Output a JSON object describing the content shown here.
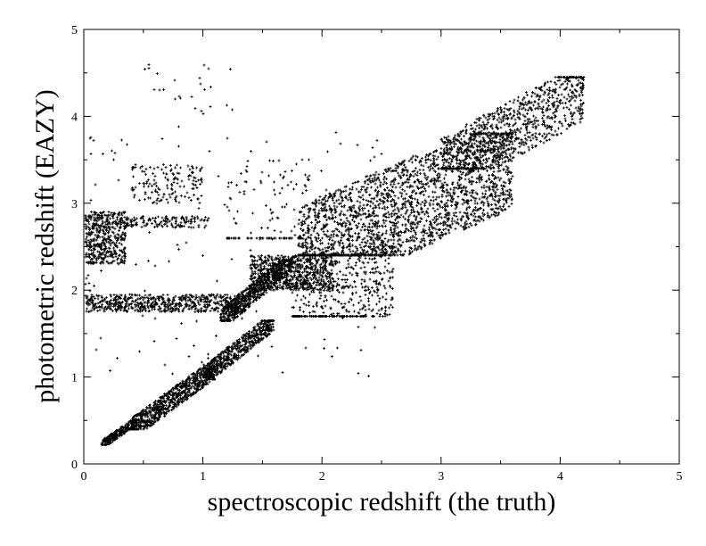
{
  "chart_data": {
    "type": "scatter",
    "title": "",
    "xlabel": "spectroscopic redshift (the truth)",
    "ylabel": "photometric redshift (EAZY)",
    "xlim": [
      0,
      5
    ],
    "ylim": [
      0,
      5
    ],
    "xticks": [
      "0",
      "1",
      "2",
      "3",
      "4",
      "5"
    ],
    "yticks": [
      "0",
      "1",
      "2",
      "3",
      "4",
      "5"
    ],
    "grid": false,
    "legend": "none",
    "marker": "plus",
    "point_color": "#000000",
    "clusters": [
      {
        "x_range": [
          0.15,
          0.45
        ],
        "y_range": [
          0.22,
          0.5
        ],
        "count": 260,
        "trend": 1.0
      },
      {
        "x_range": [
          0.4,
          1.1
        ],
        "y_range": [
          0.4,
          1.1
        ],
        "count": 800,
        "trend": 1.0
      },
      {
        "x_range": [
          1.0,
          1.6
        ],
        "y_range": [
          1.0,
          1.65
        ],
        "count": 550,
        "trend": 1.0
      },
      {
        "x_range": [
          0.0,
          1.3
        ],
        "y_range": [
          1.75,
          1.95
        ],
        "count": 600,
        "trend": 0.0
      },
      {
        "x_range": [
          0.0,
          0.35
        ],
        "y_range": [
          2.3,
          2.9
        ],
        "count": 500,
        "trend": 0.0
      },
      {
        "x_range": [
          0.35,
          1.05
        ],
        "y_range": [
          2.72,
          2.85
        ],
        "count": 140,
        "trend": 0.0
      },
      {
        "x_range": [
          0.4,
          1.0
        ],
        "y_range": [
          3.0,
          3.45
        ],
        "count": 150,
        "trend": 0.0
      },
      {
        "x_range": [
          1.15,
          1.75
        ],
        "y_range": [
          1.65,
          2.35
        ],
        "count": 700,
        "trend": 1.0
      },
      {
        "x_range": [
          1.4,
          2.1
        ],
        "y_range": [
          2.0,
          2.4
        ],
        "count": 650,
        "trend": 0.0
      },
      {
        "x_range": [
          1.75,
          2.6
        ],
        "y_range": [
          1.7,
          2.5
        ],
        "count": 450,
        "trend": 0.6
      },
      {
        "x_range": [
          1.8,
          3.6
        ],
        "y_range": [
          2.4,
          3.8
        ],
        "count": 2300,
        "trend": 0.78
      },
      {
        "x_range": [
          3.0,
          4.2
        ],
        "y_range": [
          3.4,
          4.45
        ],
        "count": 900,
        "trend": 0.85
      },
      {
        "x_range": [
          1.2,
          2.0
        ],
        "y_range": [
          2.6,
          3.5
        ],
        "count": 120,
        "trend": 0.3
      },
      {
        "x_range": [
          0.5,
          1.3
        ],
        "y_range": [
          4.0,
          4.6
        ],
        "count": 25,
        "trend": 0.0
      },
      {
        "x_range": [
          0.0,
          2.5
        ],
        "y_range": [
          1.0,
          4.0
        ],
        "count": 150,
        "trend": 0.0
      }
    ]
  }
}
